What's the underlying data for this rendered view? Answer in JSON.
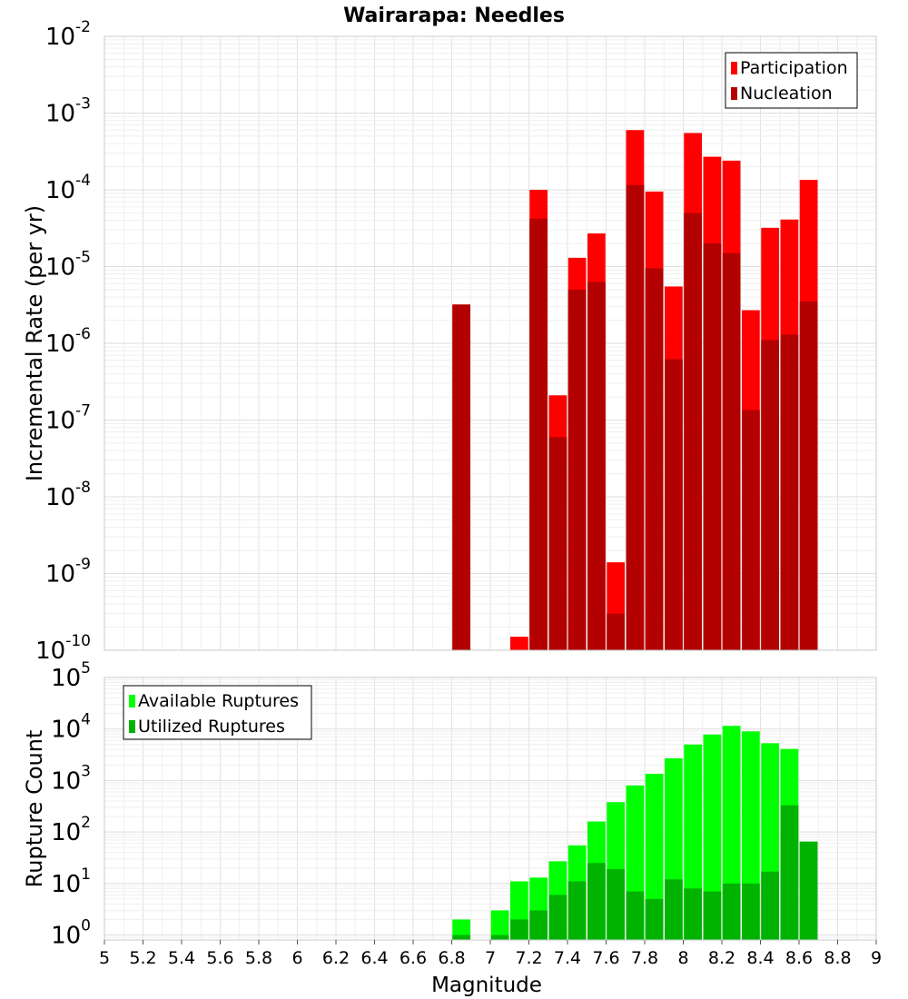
{
  "title": "Wairarapa: Needles",
  "chart_data": [
    {
      "type": "bar",
      "title": "Wairarapa: Needles",
      "ylabel": "Incremental Rate (per yr)",
      "yscale": "log",
      "ylim": [
        1e-10,
        0.01
      ],
      "xlim": [
        5,
        9
      ],
      "bin_width": 0.1,
      "grid": true,
      "legend_position": "top-right",
      "x": [
        6.85,
        7.15,
        7.25,
        7.35,
        7.45,
        7.55,
        7.65,
        7.75,
        7.85,
        7.95,
        8.05,
        8.15,
        8.25,
        8.35,
        8.45,
        8.55,
        8.65
      ],
      "series": [
        {
          "name": "Participation",
          "color": "#ff0000",
          "values": [
            3.2e-06,
            1.5e-10,
            0.0001,
            2.1e-07,
            1.3e-05,
            2.7e-05,
            1.4e-09,
            0.0006,
            9.5e-05,
            5.5e-06,
            0.00055,
            0.00027,
            0.00024,
            2.7e-06,
            3.2e-05,
            4.1e-05,
            0.000135
          ]
        },
        {
          "name": "Nucleation",
          "color": "#b30000",
          "values": [
            3.2e-06,
            null,
            4.2e-05,
            6e-08,
            5e-06,
            6.3e-06,
            3e-10,
            0.000115,
            9.5e-06,
            6.2e-07,
            5e-05,
            2e-05,
            1.5e-05,
            1.35e-07,
            1.1e-06,
            1.3e-06,
            3.5e-06
          ]
        }
      ]
    },
    {
      "type": "bar",
      "xlabel": "Magnitude",
      "ylabel": "Rupture Count",
      "yscale": "log",
      "ylim": [
        0.8,
        100000.0
      ],
      "xlim": [
        5,
        9
      ],
      "bin_width": 0.1,
      "grid": true,
      "legend_position": "top-left",
      "x": [
        6.85,
        7.05,
        7.15,
        7.25,
        7.35,
        7.45,
        7.55,
        7.65,
        7.75,
        7.85,
        7.95,
        8.05,
        8.15,
        8.25,
        8.35,
        8.45,
        8.55,
        8.65
      ],
      "series": [
        {
          "name": "Available Ruptures",
          "color": "#00ff00",
          "values": [
            2,
            3,
            11,
            13,
            27,
            55,
            160,
            380,
            800,
            1350,
            2700,
            5000,
            7800,
            11500,
            9000,
            5300,
            4100,
            65
          ]
        },
        {
          "name": "Utilized Ruptures",
          "color": "#00b300",
          "values": [
            1,
            1,
            2,
            3,
            6,
            11,
            25,
            19,
            7,
            5,
            12,
            8,
            7,
            10,
            10,
            17,
            330,
            65
          ]
        }
      ]
    }
  ],
  "x_ticks": [
    "5",
    "5.2",
    "5.4",
    "5.6",
    "5.8",
    "6",
    "6.2",
    "6.4",
    "6.6",
    "6.8",
    "7",
    "7.2",
    "7.4",
    "7.6",
    "7.8",
    "8",
    "8.2",
    "8.4",
    "8.6",
    "8.8",
    "9"
  ],
  "top_y_ticks": [
    -10,
    -9,
    -8,
    -7,
    -6,
    -5,
    -4,
    -3,
    -2
  ],
  "bottom_y_ticks": [
    0,
    1,
    2,
    3,
    4,
    5
  ]
}
